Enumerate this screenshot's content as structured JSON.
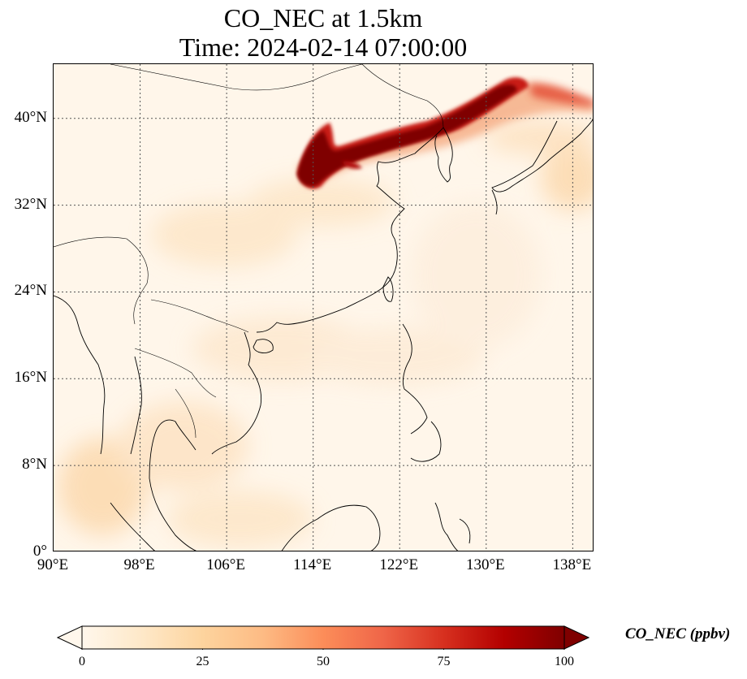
{
  "title": {
    "line1": "CO_NEC at 1.5km",
    "line2": "Time: 2024-02-14 07:00:00"
  },
  "map": {
    "projection": "PlateCarree",
    "lon_range": [
      90,
      140
    ],
    "lat_range": [
      0,
      45
    ],
    "gridlines": "dotted",
    "lat_ticks": [
      "0°",
      "8°N",
      "16°N",
      "24°N",
      "32°N",
      "40°N"
    ],
    "lat_tick_values": [
      0,
      8,
      16,
      24,
      32,
      40
    ],
    "lon_ticks": [
      "90°E",
      "98°E",
      "106°E",
      "114°E",
      "122°E",
      "130°E",
      "138°E"
    ],
    "lon_tick_values": [
      90,
      98,
      106,
      114,
      122,
      130,
      138
    ],
    "field_description_colors": {
      "background": "#fff6ea",
      "low": "#fde3c4",
      "mid": "#fdc38a",
      "high": "#d7301f",
      "max": "#7f0000"
    }
  },
  "colorbar": {
    "label": "CO_NEC (ppbv)",
    "ticks": [
      "0",
      "25",
      "50",
      "75",
      "100"
    ],
    "tick_values": [
      0,
      25,
      50,
      75,
      100
    ],
    "range": [
      0,
      100
    ],
    "colormap": "OrRd",
    "extend": "both"
  }
}
